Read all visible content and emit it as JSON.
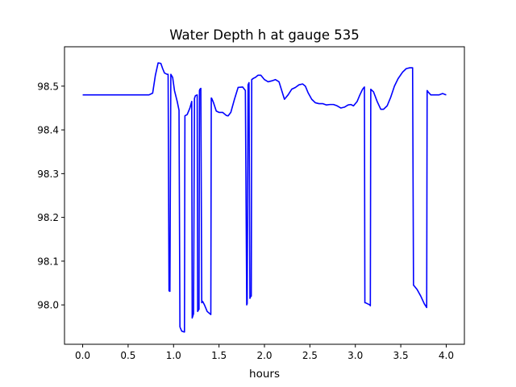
{
  "chart_data": {
    "type": "line",
    "title": "Water Depth h at gauge 535",
    "xlabel": "hours",
    "ylabel": "",
    "xlim": [
      -0.2,
      4.2
    ],
    "ylim": [
      97.91,
      98.59
    ],
    "xticks": [
      0.0,
      0.5,
      1.0,
      1.5,
      2.0,
      2.5,
      3.0,
      3.5,
      4.0
    ],
    "xtick_labels": [
      "0.0",
      "0.5",
      "1.0",
      "1.5",
      "2.0",
      "2.5",
      "3.0",
      "3.5",
      "4.0"
    ],
    "yticks": [
      98.0,
      98.1,
      98.2,
      98.3,
      98.4,
      98.5
    ],
    "ytick_labels": [
      "98.0",
      "98.1",
      "98.2",
      "98.3",
      "98.4",
      "98.5"
    ],
    "grid": false,
    "legend": "none",
    "series": [
      {
        "color": "#0000ff",
        "x": [
          0.0,
          0.3,
          0.6,
          0.73,
          0.77,
          0.8,
          0.83,
          0.86,
          0.88,
          0.9,
          0.93,
          0.94,
          0.95,
          0.955,
          0.96,
          0.97,
          0.99,
          1.01,
          1.04,
          1.06,
          1.07,
          1.075,
          1.09,
          1.12,
          1.125,
          1.15,
          1.18,
          1.2,
          1.205,
          1.22,
          1.23,
          1.235,
          1.24,
          1.26,
          1.265,
          1.27,
          1.28,
          1.285,
          1.29,
          1.3,
          1.31,
          1.32,
          1.34,
          1.37,
          1.41,
          1.415,
          1.42,
          1.44,
          1.47,
          1.5,
          1.54,
          1.58,
          1.6,
          1.63,
          1.67,
          1.71,
          1.76,
          1.79,
          1.805,
          1.81,
          1.82,
          1.83,
          1.84,
          1.85,
          1.855,
          1.86,
          1.88,
          1.9,
          1.93,
          1.96,
          2.0,
          2.04,
          2.08,
          2.12,
          2.16,
          2.19,
          2.22,
          2.26,
          2.3,
          2.34,
          2.38,
          2.42,
          2.45,
          2.48,
          2.52,
          2.56,
          2.6,
          2.64,
          2.68,
          2.72,
          2.76,
          2.8,
          2.84,
          2.88,
          2.92,
          2.95,
          2.98,
          3.02,
          3.05,
          3.08,
          3.1,
          3.105,
          3.11,
          3.14,
          3.16,
          3.165,
          3.17,
          3.2,
          3.24,
          3.28,
          3.31,
          3.35,
          3.39,
          3.43,
          3.47,
          3.52,
          3.56,
          3.6,
          3.63,
          3.64,
          3.645,
          3.68,
          3.72,
          3.76,
          3.785,
          3.79,
          3.8,
          3.83,
          3.88,
          3.92,
          3.96,
          4.0
        ],
        "y": [
          98.48,
          98.48,
          98.48,
          98.48,
          98.484,
          98.525,
          98.553,
          98.552,
          98.54,
          98.53,
          98.527,
          98.527,
          98.032,
          98.032,
          98.031,
          98.527,
          98.52,
          98.49,
          98.465,
          98.445,
          97.95,
          97.947,
          97.94,
          97.938,
          98.432,
          98.435,
          98.45,
          98.465,
          97.97,
          97.98,
          98.472,
          98.475,
          98.478,
          98.48,
          97.985,
          97.987,
          97.99,
          98.49,
          98.493,
          98.495,
          98.005,
          98.008,
          98.0,
          97.985,
          97.978,
          98.473,
          98.472,
          98.462,
          98.443,
          98.44,
          98.44,
          98.433,
          98.432,
          98.44,
          98.47,
          98.497,
          98.498,
          98.49,
          98.0,
          98.003,
          98.503,
          98.508,
          98.015,
          98.02,
          98.02,
          98.515,
          98.518,
          98.52,
          98.525,
          98.525,
          98.515,
          98.51,
          98.512,
          98.515,
          98.51,
          98.49,
          98.47,
          98.48,
          98.493,
          98.497,
          98.503,
          98.505,
          98.5,
          98.485,
          98.47,
          98.462,
          98.46,
          98.46,
          98.457,
          98.458,
          98.458,
          98.455,
          98.45,
          98.452,
          98.457,
          98.458,
          98.455,
          98.465,
          98.48,
          98.493,
          98.498,
          98.005,
          98.005,
          98.002,
          98.0,
          97.998,
          98.493,
          98.487,
          98.465,
          98.447,
          98.447,
          98.455,
          98.475,
          98.5,
          98.517,
          98.532,
          98.54,
          98.542,
          98.542,
          98.045,
          98.044,
          98.035,
          98.02,
          98.002,
          97.994,
          98.49,
          98.487,
          98.48,
          98.48,
          98.48,
          98.483,
          98.48
        ]
      }
    ]
  }
}
